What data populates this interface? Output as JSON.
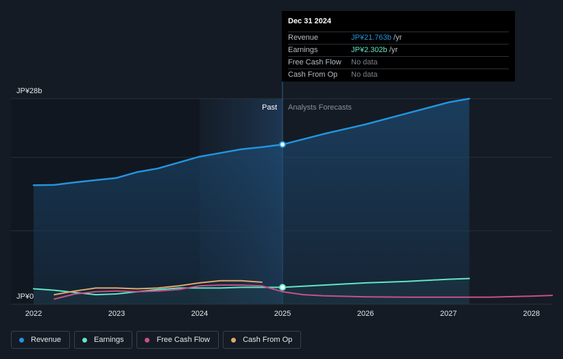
{
  "tooltip": {
    "date": "Dec 31 2024",
    "rows": [
      {
        "name": "Revenue",
        "value": "JP¥21.763b",
        "unit": " /yr"
      },
      {
        "name": "Earnings",
        "value": "JP¥2.302b",
        "unit": " /yr"
      },
      {
        "name": "Free Cash Flow",
        "value": "No data",
        "unit": ""
      },
      {
        "name": "Cash From Op",
        "value": "No data",
        "unit": ""
      }
    ]
  },
  "legend": [
    {
      "label": "Revenue",
      "color": "#2394df"
    },
    {
      "label": "Earnings",
      "color": "#63e6c5"
    },
    {
      "label": "Free Cash Flow",
      "color": "#c94f8a"
    },
    {
      "label": "Cash From Op",
      "color": "#e0a86a"
    }
  ],
  "chart_data": {
    "type": "line",
    "y_top_label": "JP¥28b",
    "y_bottom_label": "JP¥0",
    "ylim": [
      0,
      28
    ],
    "xlim": [
      2021.77,
      2028.25
    ],
    "x_ticks": [
      {
        "value": 2022,
        "label": "2022"
      },
      {
        "value": 2023,
        "label": "2023"
      },
      {
        "value": 2024,
        "label": "2024"
      },
      {
        "value": 2025,
        "label": "2025"
      },
      {
        "value": 2026,
        "label": "2026"
      },
      {
        "value": 2027,
        "label": "2027"
      },
      {
        "value": 2028,
        "label": "2028"
      }
    ],
    "grid_values": [
      0,
      10,
      20,
      28
    ],
    "divider_x": 2025,
    "past_shade_start": 2024,
    "past_label": "Past",
    "forecast_label": "Analysts Forecasts",
    "series": [
      {
        "name": "Revenue",
        "color": "#2394df",
        "area": true,
        "marker_x": 2025,
        "marker_y": 21.76,
        "points": [
          [
            2022,
            16.2
          ],
          [
            2022.25,
            16.25
          ],
          [
            2022.5,
            16.6
          ],
          [
            2022.75,
            16.9
          ],
          [
            2023,
            17.2
          ],
          [
            2023.25,
            18.0
          ],
          [
            2023.5,
            18.5
          ],
          [
            2023.75,
            19.3
          ],
          [
            2024,
            20.1
          ],
          [
            2024.25,
            20.6
          ],
          [
            2024.5,
            21.1
          ],
          [
            2024.75,
            21.4
          ],
          [
            2025,
            21.76
          ],
          [
            2025.5,
            23.2
          ],
          [
            2026,
            24.5
          ],
          [
            2026.5,
            26.0
          ],
          [
            2027,
            27.5
          ],
          [
            2027.25,
            28.0
          ]
        ]
      },
      {
        "name": "Earnings",
        "color": "#63e6c5",
        "area": true,
        "marker_x": 2025,
        "marker_y": 2.3,
        "points": [
          [
            2022,
            2.1
          ],
          [
            2022.25,
            1.9
          ],
          [
            2022.5,
            1.6
          ],
          [
            2022.75,
            1.3
          ],
          [
            2023,
            1.4
          ],
          [
            2023.25,
            1.7
          ],
          [
            2023.5,
            2.0
          ],
          [
            2023.75,
            2.2
          ],
          [
            2024,
            2.2
          ],
          [
            2024.25,
            2.2
          ],
          [
            2024.5,
            2.3
          ],
          [
            2024.75,
            2.3
          ],
          [
            2025,
            2.3
          ],
          [
            2025.5,
            2.6
          ],
          [
            2026,
            2.9
          ],
          [
            2026.5,
            3.1
          ],
          [
            2027,
            3.4
          ],
          [
            2027.25,
            3.5
          ]
        ]
      },
      {
        "name": "Free Cash Flow",
        "color": "#c94f8a",
        "area": false,
        "points": [
          [
            2022.25,
            0.7
          ],
          [
            2022.5,
            1.4
          ],
          [
            2022.75,
            1.7
          ],
          [
            2023,
            1.8
          ],
          [
            2023.25,
            1.7
          ],
          [
            2023.5,
            1.8
          ],
          [
            2023.75,
            2.0
          ],
          [
            2024,
            2.5
          ],
          [
            2024.25,
            2.6
          ],
          [
            2024.5,
            2.6
          ],
          [
            2024.75,
            2.5
          ],
          [
            2025,
            1.7
          ],
          [
            2025.25,
            1.3
          ],
          [
            2025.5,
            1.15
          ],
          [
            2026,
            1.0
          ],
          [
            2026.5,
            0.95
          ],
          [
            2027,
            0.95
          ],
          [
            2027.5,
            0.95
          ],
          [
            2028,
            1.1
          ],
          [
            2028.25,
            1.2
          ]
        ]
      },
      {
        "name": "Cash From Op",
        "color": "#e0a86a",
        "area": false,
        "points": [
          [
            2022.25,
            1.3
          ],
          [
            2022.5,
            1.8
          ],
          [
            2022.75,
            2.2
          ],
          [
            2023,
            2.2
          ],
          [
            2023.25,
            2.1
          ],
          [
            2023.5,
            2.2
          ],
          [
            2023.75,
            2.5
          ],
          [
            2024,
            2.9
          ],
          [
            2024.25,
            3.2
          ],
          [
            2024.5,
            3.2
          ],
          [
            2024.75,
            3.0
          ]
        ]
      }
    ]
  }
}
